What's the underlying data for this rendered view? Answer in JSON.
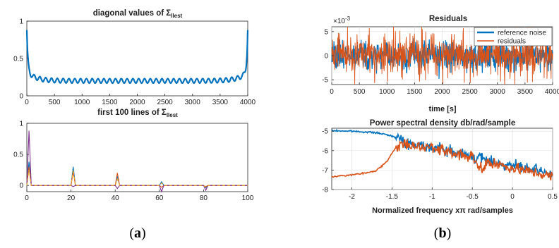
{
  "colors": {
    "blue": "#0072BD",
    "orange": "#D95319",
    "purple": "#7E2F8E",
    "yellow": "#EDB120"
  },
  "captions": {
    "a": "a",
    "b": "b"
  },
  "chart_data": [
    {
      "type": "line",
      "title_text": "diagonal values of Σ",
      "title_sub": "llest",
      "xlim": [
        0,
        4000
      ],
      "ylim": [
        0,
        1
      ],
      "xticks": [
        "0",
        "500",
        "1000",
        "1500",
        "2000",
        "2500",
        "3000",
        "3500",
        "4000"
      ],
      "yticks": [
        "0",
        "0.5",
        "1"
      ],
      "grid": false,
      "series": [
        {
          "values_description": "",
          "edge_value": 0.88,
          "baseline": 0.2,
          "amplitude": 0.03,
          "oscillations": 38
        }
      ]
    },
    {
      "type": "line",
      "title_text": "first 100 lines of Σ",
      "title_sub": "llest",
      "xlim": [
        0,
        100
      ],
      "ylim": [
        -0.1,
        1
      ],
      "xticks": [
        "0",
        "20",
        "40",
        "60",
        "80",
        "100"
      ],
      "yticks": [
        "0",
        "0.5",
        "1"
      ],
      "yticks_values": [
        0,
        0.5,
        1
      ],
      "grid": false,
      "spikes": [
        {
          "x": 1,
          "values": [
            0.38,
            0.3,
            0.88,
            0.25
          ]
        },
        {
          "x": 21,
          "values": [
            0.3,
            0.22,
            -0.02,
            0.25
          ]
        },
        {
          "x": 41,
          "values": [
            0.15,
            0.2,
            -0.05,
            0.1
          ]
        },
        {
          "x": 61,
          "values": [
            0.06,
            -0.03,
            -0.1,
            0.04
          ]
        },
        {
          "x": 81,
          "values": [
            -0.04,
            -0.02,
            -0.08,
            -0.03
          ]
        }
      ]
    },
    {
      "type": "line",
      "title": "Residuals",
      "exponent_label": "×10",
      "exponent_power": "-3",
      "xlabel": "time [s]",
      "xlim": [
        0,
        4000
      ],
      "ylim": [
        -6,
        6
      ],
      "xticks": [
        "0",
        "500",
        "1000",
        "1500",
        "2000",
        "2500",
        "3000",
        "3500",
        "4000"
      ],
      "yticks": [
        "-5",
        "0",
        "5"
      ],
      "yticks_values": [
        -5,
        0,
        5
      ],
      "grid": true,
      "legend_position": "top-right",
      "series": [
        {
          "name": "reference noise",
          "std": 1.6
        },
        {
          "name": "residuals",
          "std": 1.9
        }
      ]
    },
    {
      "type": "line",
      "title": "Power spectral density db/rad/sample",
      "xlabel": "Normalized frequency xπ rad/samples",
      "xlim": [
        -2.25,
        0.5
      ],
      "ylim": [
        -8,
        -4.85
      ],
      "xticks": [
        "-2",
        "-1.5",
        "-1",
        "-0.5",
        "0",
        "0.5"
      ],
      "xticks_values": [
        -2,
        -1.5,
        -1,
        -0.5,
        0,
        0.5
      ],
      "yticks": [
        "-5",
        "-6",
        "-7",
        "-8"
      ],
      "yticks_values": [
        -5,
        -6,
        -7,
        -8
      ],
      "grid": true,
      "series": [
        {
          "name": "reference noise",
          "anchors": [
            [
              -2.25,
              -4.98
            ],
            [
              -2.0,
              -5.0
            ],
            [
              -1.7,
              -5.08
            ],
            [
              -1.55,
              -5.2
            ],
            [
              -1.45,
              -5.3
            ],
            [
              -1.35,
              -5.55
            ],
            [
              -1.25,
              -5.65
            ],
            [
              -1.0,
              -5.8
            ],
            [
              -0.5,
              -6.3
            ],
            [
              0.0,
              -6.8
            ],
            [
              0.25,
              -7.0
            ],
            [
              0.5,
              -7.2
            ]
          ]
        },
        {
          "name": "residuals",
          "anchors": [
            [
              -2.25,
              -7.35
            ],
            [
              -1.9,
              -7.2
            ],
            [
              -1.7,
              -7.05
            ],
            [
              -1.55,
              -6.5
            ],
            [
              -1.48,
              -6.0
            ],
            [
              -1.4,
              -5.65
            ],
            [
              -1.3,
              -5.75
            ],
            [
              -1.0,
              -5.85
            ],
            [
              -0.5,
              -6.35
            ],
            [
              -0.4,
              -6.9
            ],
            [
              -0.3,
              -6.6
            ],
            [
              0.0,
              -6.9
            ],
            [
              0.25,
              -7.1
            ],
            [
              0.5,
              -7.35
            ]
          ]
        }
      ]
    }
  ]
}
